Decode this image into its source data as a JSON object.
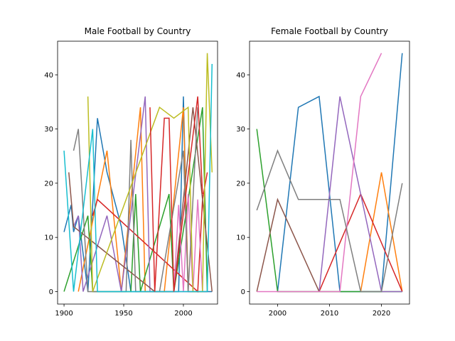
{
  "chart_data": [
    {
      "type": "line",
      "title": "Male Football by Country",
      "xlim": [
        1894.6,
        2028.6
      ],
      "ylim": [
        -2.3,
        46.2
      ],
      "xticks": [
        1900,
        1950,
        2000
      ],
      "yticks": [
        0,
        10,
        20,
        30,
        40
      ],
      "series": [
        {
          "color": "#1f77b4",
          "x": [
            1900,
            1906,
            1908,
            1912,
            1920,
            1928,
            1936,
            1948,
            1956,
            1996,
            2000,
            2004,
            2024
          ],
          "values": [
            11,
            16,
            11,
            14,
            0,
            32,
            22,
            12,
            0,
            0,
            36,
            0,
            0
          ]
        },
        {
          "color": "#ff7f0e",
          "x": [
            1912,
            1936,
            1948,
            1964,
            1968,
            1984,
            2000,
            2004,
            2020
          ],
          "values": [
            0,
            26,
            0,
            34,
            0,
            0,
            34,
            0,
            0
          ]
        },
        {
          "color": "#2ca02c",
          "x": [
            1900,
            1920,
            1924,
            1956,
            1960,
            1964,
            1988,
            1992,
            2016,
            2020
          ],
          "values": [
            0,
            14,
            0,
            0,
            18,
            0,
            18,
            0,
            34,
            0
          ]
        },
        {
          "color": "#d62728",
          "x": [
            1924,
            1928,
            2012,
            2016,
            2020
          ],
          "values": [
            14,
            17,
            0,
            17,
            22
          ]
        },
        {
          "color": "#9467bd",
          "x": [
            1908,
            1912,
            1916,
            1936,
            1948,
            1968,
            1972,
            2020
          ],
          "values": [
            12,
            14,
            0,
            14,
            0,
            36,
            0,
            0
          ]
        },
        {
          "color": "#8c564b",
          "x": [
            1904,
            1908,
            1976,
            1988,
            1992,
            2008,
            2024
          ],
          "values": [
            22,
            12,
            0,
            0,
            0,
            34,
            0
          ]
        },
        {
          "color": "#e377c2",
          "x": [
            1992,
            1996,
            2000,
            2004,
            2008,
            2012,
            2016
          ],
          "values": [
            0,
            16,
            0,
            18,
            0,
            17,
            0
          ]
        },
        {
          "color": "#7f7f7f",
          "x": [
            1908,
            1912,
            1920,
            1952,
            1956,
            1960,
            1980,
            2000,
            2004,
            2012
          ],
          "values": [
            26,
            30,
            0,
            0,
            28,
            0,
            0,
            26,
            0,
            34
          ]
        },
        {
          "color": "#bcbd22",
          "x": [
            1920,
            1924,
            1980,
            1992,
            2004,
            2008,
            2016,
            2020,
            2024
          ],
          "values": [
            36,
            0,
            34,
            32,
            34,
            0,
            0,
            44,
            22
          ]
        },
        {
          "color": "#17becf",
          "x": [
            1900,
            1908,
            1924,
            1928,
            2020,
            2024
          ],
          "values": [
            26,
            0,
            30,
            0,
            0,
            42
          ]
        },
        {
          "color": "#d62728",
          "x": [
            1972,
            1976,
            1984,
            1988,
            1992,
            2012,
            2016
          ],
          "values": [
            34,
            0,
            32,
            32,
            0,
            36,
            18
          ]
        }
      ]
    },
    {
      "type": "line",
      "title": "Female Football by Country",
      "xlim": [
        1994.6,
        2025.4
      ],
      "ylim": [
        -2.3,
        46.2
      ],
      "xticks": [
        2000,
        2010,
        2020
      ],
      "yticks": [
        0,
        10,
        20,
        30,
        40
      ],
      "x": [
        1996,
        2000,
        2004,
        2008,
        2012,
        2016,
        2020,
        2024
      ],
      "series": [
        {
          "color": "#1f77b4",
          "values": [
            null,
            0,
            34,
            36,
            0,
            0,
            0,
            44
          ]
        },
        {
          "color": "#ff7f0e",
          "values": [
            null,
            null,
            null,
            null,
            null,
            0,
            22,
            0
          ]
        },
        {
          "color": "#2ca02c",
          "values": [
            30,
            0,
            0,
            0,
            0,
            0,
            0,
            0
          ]
        },
        {
          "color": "#d62728",
          "values": [
            null,
            null,
            null,
            0,
            9,
            18,
            9,
            0
          ]
        },
        {
          "color": "#9467bd",
          "values": [
            null,
            null,
            null,
            0,
            36,
            18,
            0,
            0
          ]
        },
        {
          "color": "#8c564b",
          "values": [
            0,
            17,
            8.5,
            0,
            null,
            null,
            null,
            null
          ]
        },
        {
          "color": "#e377c2",
          "values": [
            0,
            0,
            0,
            0,
            0,
            36,
            44,
            null
          ]
        },
        {
          "color": "#7f7f7f",
          "values": [
            15,
            26,
            17,
            17,
            17,
            0,
            0,
            20
          ]
        }
      ]
    }
  ]
}
